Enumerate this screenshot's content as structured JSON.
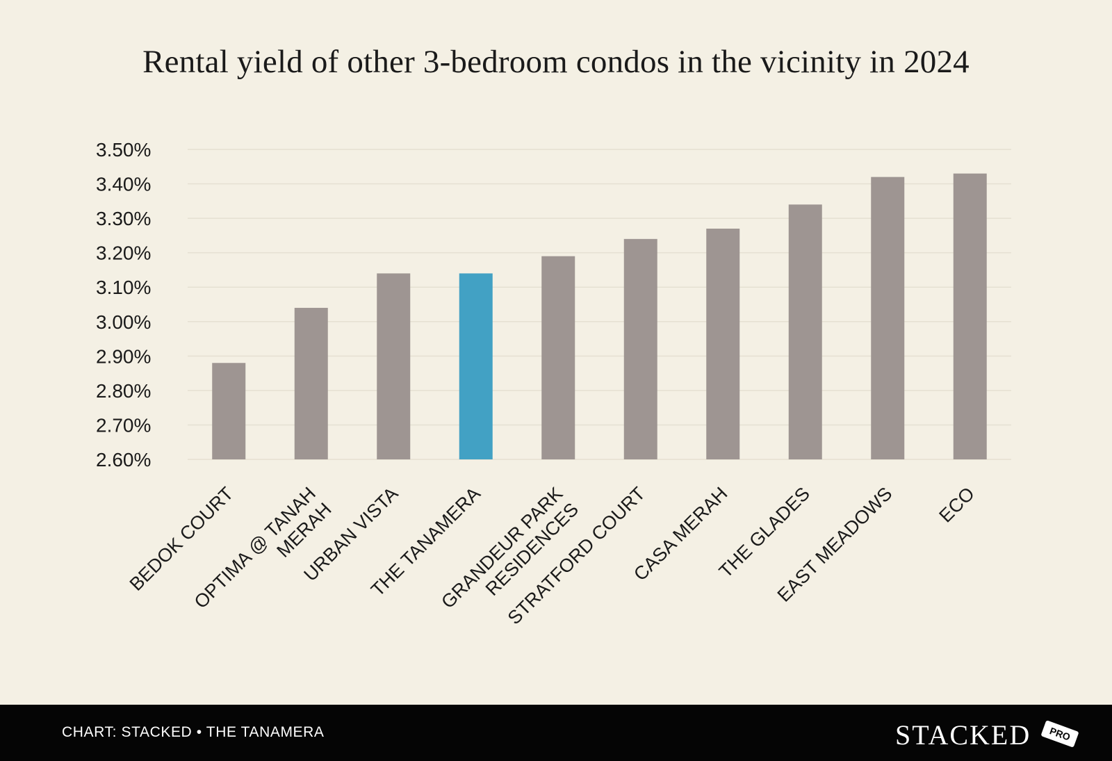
{
  "chart_data": {
    "type": "bar",
    "title": "Rental yield of other 3-bedroom condos in the vicinity in 2024",
    "xlabel": "",
    "ylabel": "",
    "ylim": [
      2.6,
      3.5
    ],
    "yticks": [
      "3.50%",
      "3.40%",
      "3.30%",
      "3.20%",
      "3.10%",
      "3.00%",
      "2.90%",
      "2.80%",
      "2.70%",
      "2.60%"
    ],
    "ytick_values": [
      3.5,
      3.4,
      3.3,
      3.2,
      3.1,
      3.0,
      2.9,
      2.8,
      2.7,
      2.6
    ],
    "categories": [
      [
        "BEDOK COURT"
      ],
      [
        "OPTIMA @ TANAH",
        "MERAH"
      ],
      [
        "URBAN VISTA"
      ],
      [
        "THE TANAMERA"
      ],
      [
        "GRANDEUR PARK",
        "RESIDENCES"
      ],
      [
        "STRATFORD COURT"
      ],
      [
        "CASA MERAH"
      ],
      [
        "THE GLADES"
      ],
      [
        "EAST MEADOWS"
      ],
      [
        "ECO"
      ]
    ],
    "values": [
      2.88,
      3.04,
      3.14,
      3.14,
      3.19,
      3.24,
      3.27,
      3.34,
      3.42,
      3.43
    ],
    "highlight_index": 3,
    "colors": {
      "bar": "#9e9592",
      "highlight": "#42a1c4",
      "grid": "#e5e0d2"
    },
    "grid": true
  },
  "footer": {
    "source": "CHART: STACKED • THE TANAMERA",
    "brand": "STACKED",
    "badge": "PRO"
  }
}
